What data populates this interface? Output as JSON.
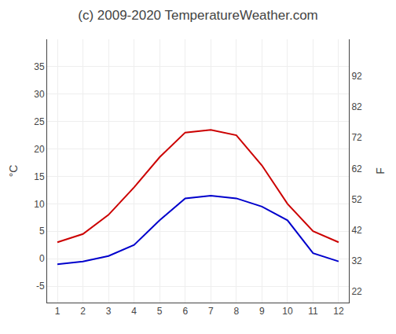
{
  "chart_data": {
    "type": "line",
    "title": "(c) 2009-2020 TemperatureWeather.com",
    "ylabel": "°C",
    "y2label": "F",
    "x": [
      1,
      2,
      3,
      4,
      5,
      6,
      7,
      8,
      9,
      10,
      11,
      12
    ],
    "xlim": [
      0.6,
      12.4
    ],
    "xticks": [
      1,
      2,
      3,
      4,
      5,
      6,
      7,
      8,
      9,
      10,
      11,
      12
    ],
    "ylim": [
      -8,
      40
    ],
    "yticks": [
      -5,
      0,
      5,
      10,
      15,
      20,
      25,
      30,
      35
    ],
    "y2lim": [
      18.4,
      104
    ],
    "y2ticks": [
      22,
      32,
      42,
      52,
      62,
      72,
      82,
      92
    ],
    "grid": true,
    "series": [
      {
        "color": "#cc0000",
        "values": [
          3.0,
          4.5,
          8.0,
          13.0,
          18.5,
          23.0,
          23.5,
          22.5,
          17.0,
          10.0,
          5.0,
          3.0
        ]
      },
      {
        "color": "#0000cc",
        "values": [
          -1.0,
          -0.5,
          0.5,
          2.5,
          7.0,
          11.0,
          11.5,
          11.0,
          9.5,
          7.0,
          1.0,
          -0.5
        ]
      }
    ]
  }
}
